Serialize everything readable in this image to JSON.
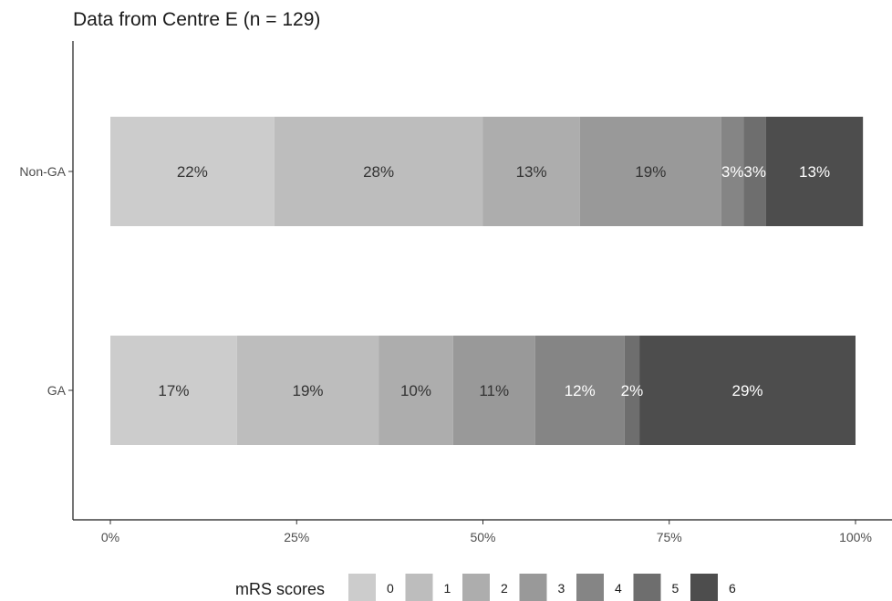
{
  "chart_data": {
    "type": "bar",
    "orientation": "horizontal",
    "stacked": true,
    "title": "Data from Centre E (n = 129)",
    "xlabel": "",
    "ylabel": "",
    "xlim": [
      0,
      100
    ],
    "x_ticks": [
      "0%",
      "25%",
      "50%",
      "75%",
      "100%"
    ],
    "x_tick_values": [
      0,
      25,
      50,
      75,
      100
    ],
    "categories": [
      "Non-GA",
      "GA"
    ],
    "series": [
      {
        "name": "0",
        "color": "#cccccc",
        "values": [
          22,
          17
        ],
        "labels": [
          "22%",
          "17%"
        ]
      },
      {
        "name": "1",
        "color": "#bdbdbd",
        "values": [
          28,
          19
        ],
        "labels": [
          "28%",
          "19%"
        ]
      },
      {
        "name": "2",
        "color": "#adadad",
        "values": [
          13,
          10
        ],
        "labels": [
          "13%",
          "10%"
        ]
      },
      {
        "name": "3",
        "color": "#999999",
        "values": [
          19,
          11
        ],
        "labels": [
          "19%",
          "11%"
        ]
      },
      {
        "name": "4",
        "color": "#858585",
        "values": [
          3,
          12
        ],
        "labels": [
          "3%",
          "12%"
        ]
      },
      {
        "name": "5",
        "color": "#6e6e6e",
        "values": [
          3,
          2
        ],
        "labels": [
          "3%",
          "2%"
        ]
      },
      {
        "name": "6",
        "color": "#4d4d4d",
        "values": [
          13,
          29
        ],
        "labels": [
          "13%",
          "29%"
        ]
      }
    ],
    "legend": {
      "title": "mRS scores",
      "placement": "bottom"
    },
    "grid": false,
    "label_colors": {
      "dark": "#333333",
      "light": "#ffffff"
    }
  }
}
